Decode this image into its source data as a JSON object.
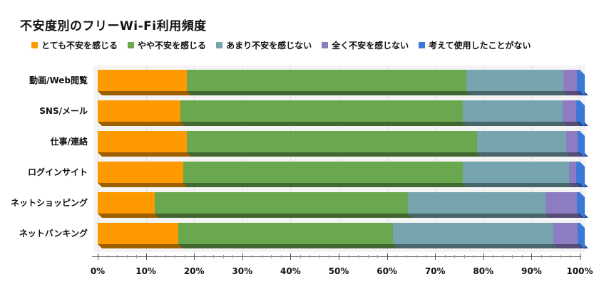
{
  "title": "不安度別のフリーWi-Fi利用頻度",
  "legend": [
    {
      "label": "とても不安を感じる",
      "color": "#ff9900"
    },
    {
      "label": "やや不安を感じる",
      "color": "#6aa84f"
    },
    {
      "label": "あまり不安を感じない",
      "color": "#76a5af"
    },
    {
      "label": "全く不安を感じない",
      "color": "#8e7cc3"
    },
    {
      "label": "考えて使用したことがない",
      "color": "#3c78d8"
    }
  ],
  "axis": {
    "ticks": [
      "0%",
      "10%",
      "20%",
      "30%",
      "40%",
      "50%",
      "60%",
      "70%",
      "80%",
      "90%",
      "100%"
    ]
  },
  "chart_data": {
    "type": "bar",
    "orientation": "horizontal",
    "stacked": "percent",
    "title": "不安度別のフリーWi-Fi利用頻度",
    "categories": [
      "動画/Web閲覧",
      "SNS/メール",
      "仕事/連絡",
      "ログインサイト",
      "ネットショッピング",
      "ネットバンキング"
    ],
    "series": [
      {
        "name": "とても不安を感じる",
        "color": "#ff9900",
        "values": [
          18.5,
          17.2,
          18.5,
          17.8,
          11.8,
          16.7
        ]
      },
      {
        "name": "やや不安を感じる",
        "color": "#6aa84f",
        "values": [
          58.0,
          58.5,
          60.2,
          57.9,
          52.5,
          44.5
        ]
      },
      {
        "name": "あまり不安を感じない",
        "color": "#76a5af",
        "values": [
          20.1,
          20.7,
          18.5,
          22.1,
          28.6,
          33.3
        ]
      },
      {
        "name": "全く不安を感じない",
        "color": "#8e7cc3",
        "values": [
          2.8,
          2.9,
          2.3,
          1.5,
          6.5,
          5.0
        ]
      },
      {
        "name": "考えて使用したことがない",
        "color": "#3c78d8",
        "values": [
          0.6,
          0.7,
          0.5,
          0.7,
          0.6,
          0.5
        ]
      }
    ],
    "xlabel": "",
    "ylabel": "",
    "xlim": [
      0,
      100
    ],
    "xtick_labels": [
      "0%",
      "10%",
      "20%",
      "30%",
      "40%",
      "50%",
      "60%",
      "70%",
      "80%",
      "90%",
      "100%"
    ],
    "grid": true,
    "legend_position": "top",
    "style": "3d"
  }
}
